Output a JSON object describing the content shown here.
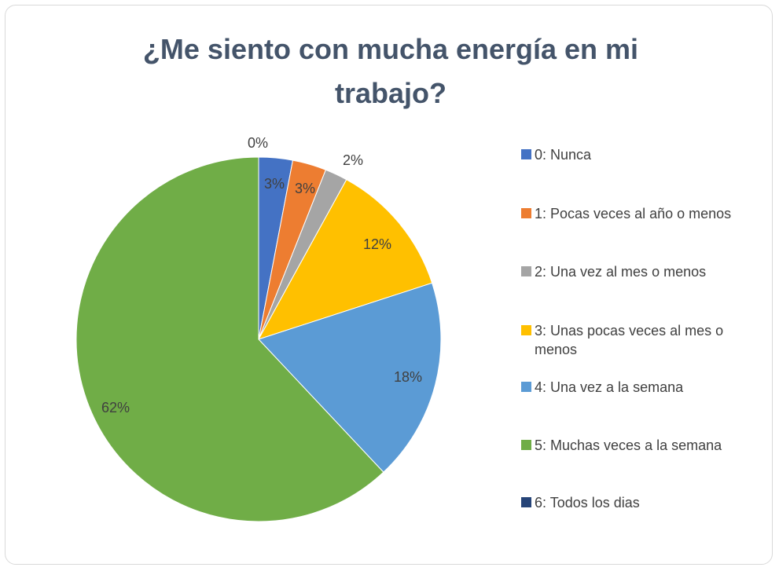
{
  "chart_data": {
    "type": "pie",
    "title": "¿Me siento con mucha energía en mi trabajo?",
    "categories": [
      "0: Nunca",
      "1: Pocas veces al año o menos",
      "2: Una vez al mes o menos",
      "3: Unas pocas veces al mes o menos",
      "4: Una vez a la semana",
      "5: Muchas veces a la semana",
      "6: Todos los dias"
    ],
    "values": [
      3,
      3,
      2,
      12,
      18,
      62,
      0
    ],
    "value_labels": [
      "3%",
      "3%",
      "2%",
      "12%",
      "18%",
      "62%",
      "0%"
    ],
    "colors": [
      "#4472c4",
      "#ed7d31",
      "#a5a5a5",
      "#ffc000",
      "#5b9bd5",
      "#70ad47",
      "#264478"
    ],
    "legend": "right"
  }
}
